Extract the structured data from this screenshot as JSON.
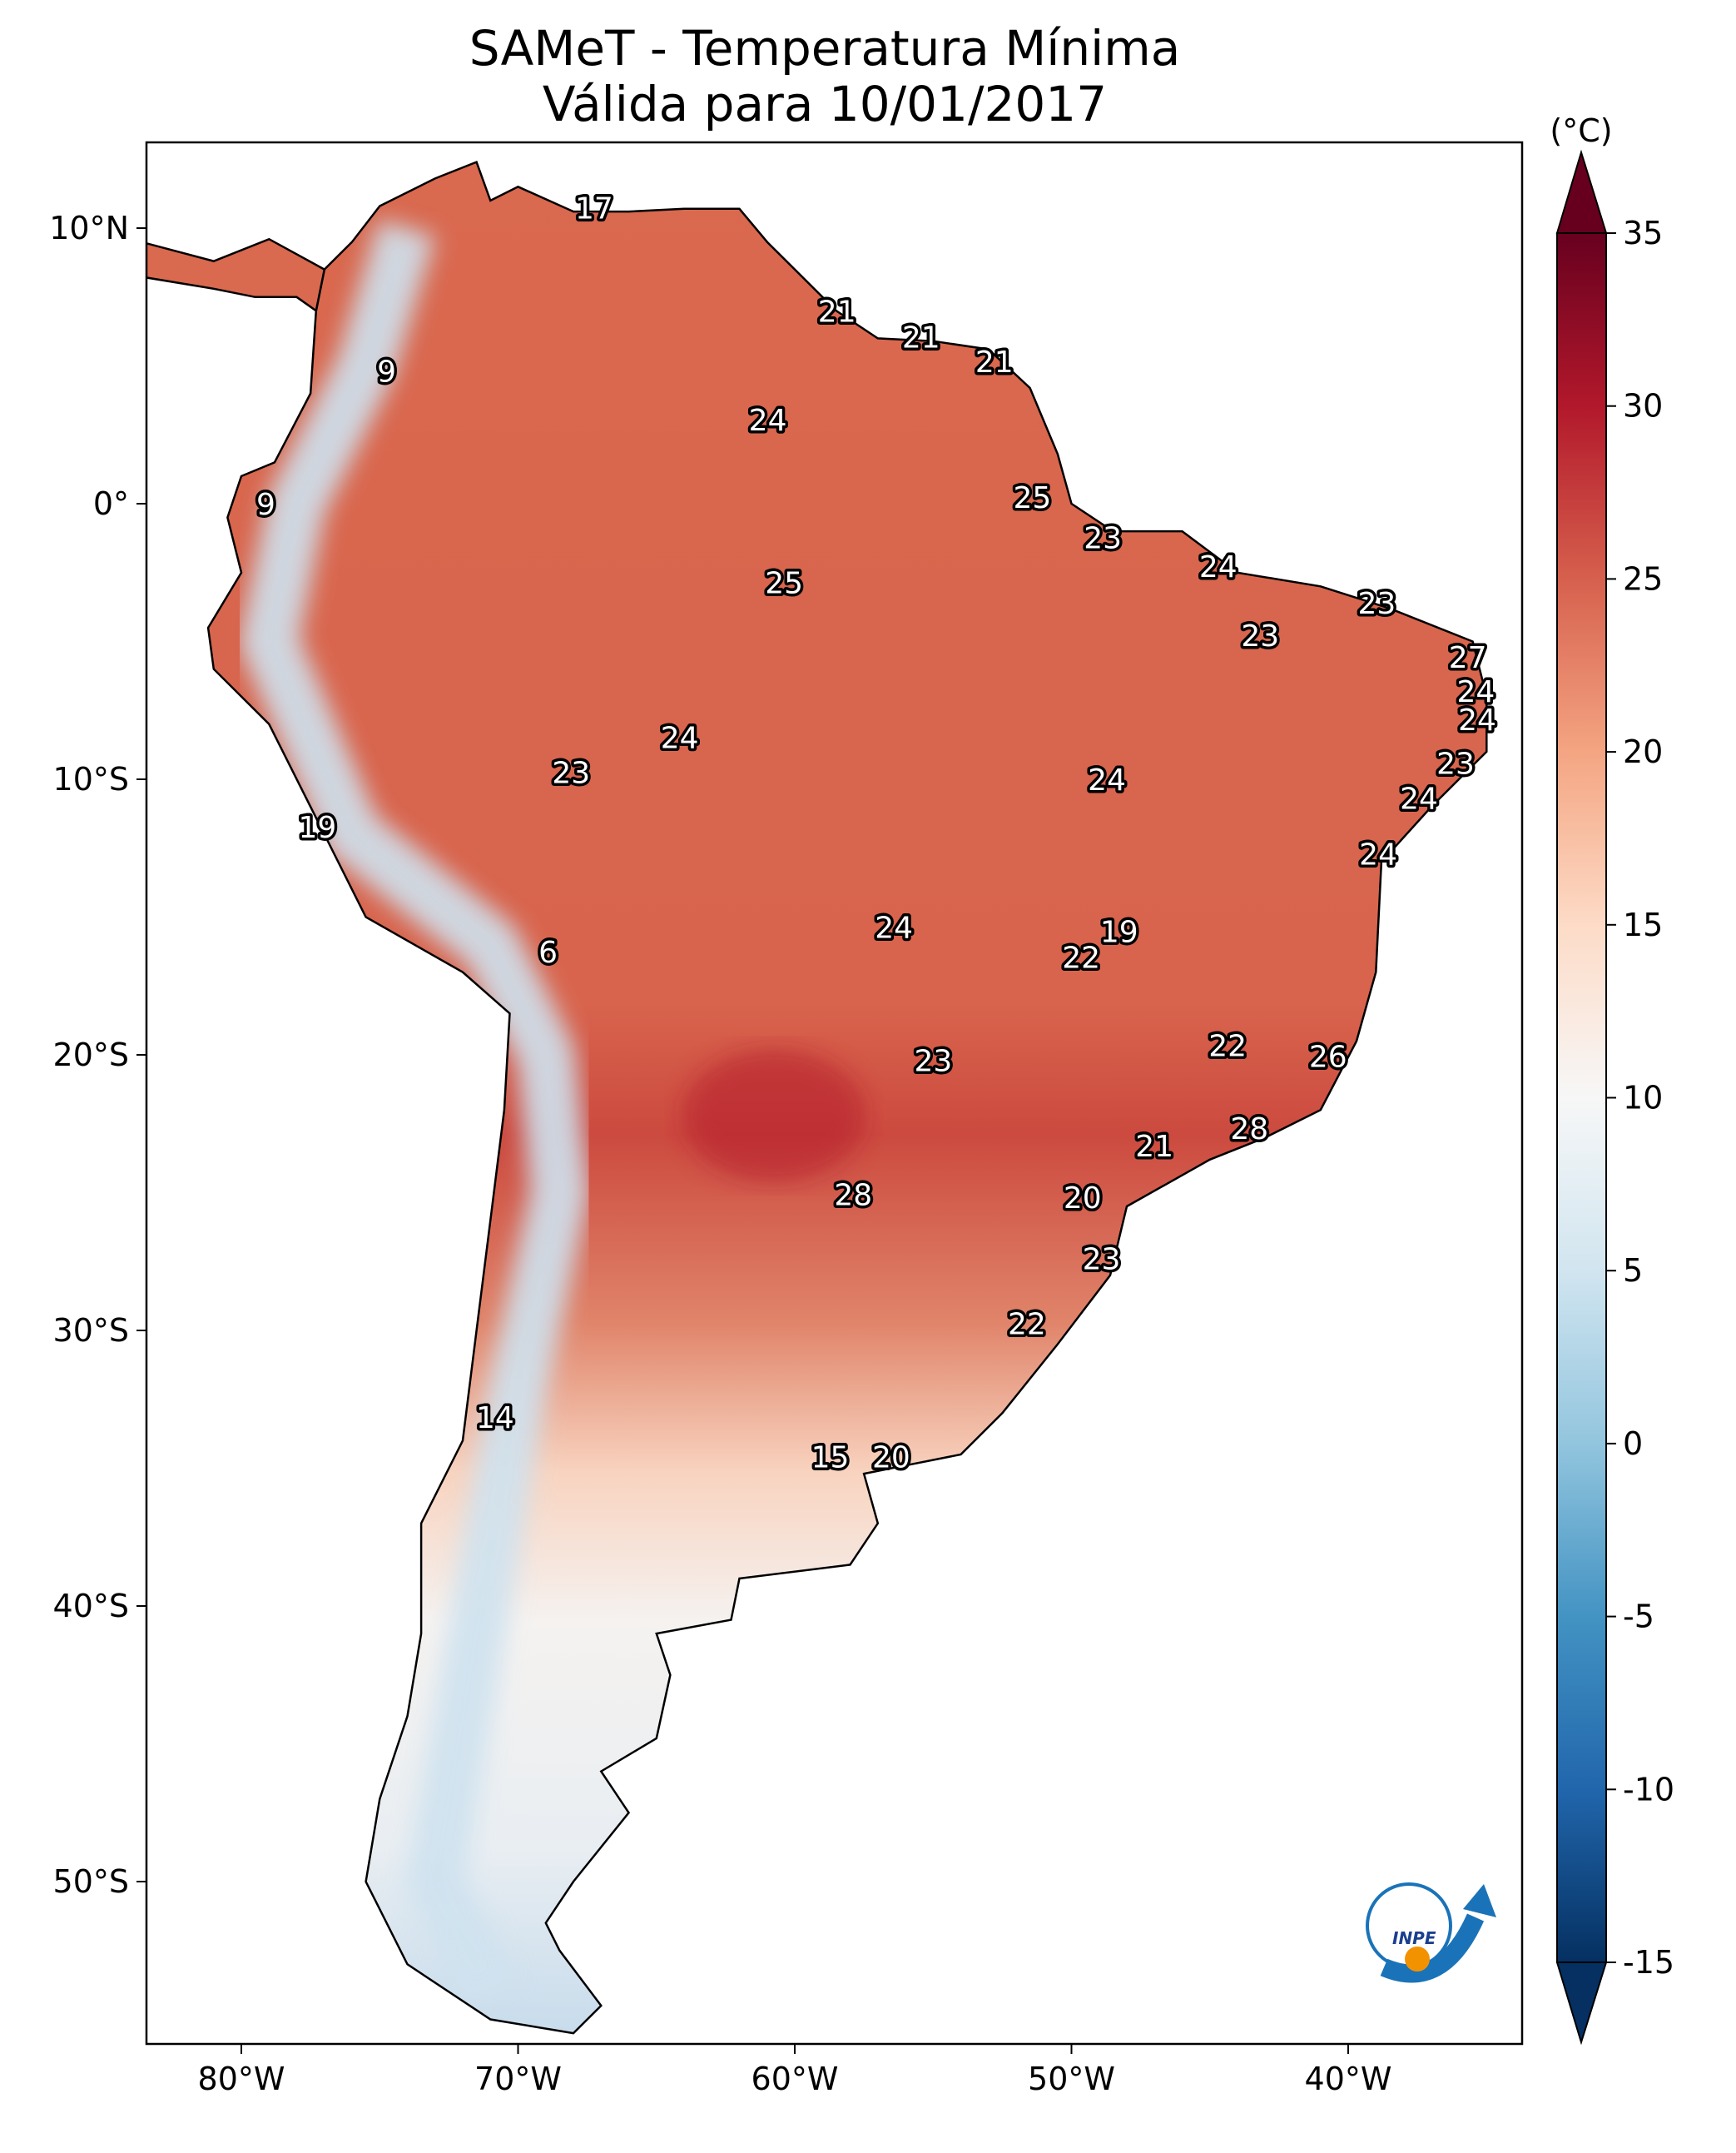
{
  "title": {
    "line1": "SAMeT - Temperatura Mínima",
    "line2": "Válida para 10/01/2017"
  },
  "colorbar": {
    "unit_label": "(°C)",
    "ticks": [
      "35",
      "30",
      "25",
      "20",
      "15",
      "10",
      "5",
      "0",
      "-5",
      "-10",
      "-15"
    ],
    "range": [
      -15,
      35
    ],
    "colors": [
      "#053061",
      "#2166ac",
      "#4393c3",
      "#92c5de",
      "#d1e5f0",
      "#f7f7f7",
      "#fddbc7",
      "#f4a582",
      "#d6604d",
      "#b2182b",
      "#67001f"
    ]
  },
  "axes": {
    "lat_ticks": [
      "10°N",
      "0°",
      "10°S",
      "20°S",
      "30°S",
      "40°S",
      "50°S"
    ],
    "lon_ticks": [
      "80°W",
      "70°W",
      "60°W",
      "50°W",
      "40°W"
    ]
  },
  "stations": [
    {
      "value": "17"
    },
    {
      "value": "21"
    },
    {
      "value": "21"
    },
    {
      "value": "21"
    },
    {
      "value": "9"
    },
    {
      "value": "24"
    },
    {
      "value": "9"
    },
    {
      "value": "25"
    },
    {
      "value": "23"
    },
    {
      "value": "24"
    },
    {
      "value": "25"
    },
    {
      "value": "23"
    },
    {
      "value": "23"
    },
    {
      "value": "27"
    },
    {
      "value": "24"
    },
    {
      "value": "24"
    },
    {
      "value": "24"
    },
    {
      "value": "23"
    },
    {
      "value": "24"
    },
    {
      "value": "23"
    },
    {
      "value": "24"
    },
    {
      "value": "19"
    },
    {
      "value": "24"
    },
    {
      "value": "24"
    },
    {
      "value": "19"
    },
    {
      "value": "6"
    },
    {
      "value": "22"
    },
    {
      "value": "22"
    },
    {
      "value": "23"
    },
    {
      "value": "26"
    },
    {
      "value": "28"
    },
    {
      "value": "21"
    },
    {
      "value": "28"
    },
    {
      "value": "20"
    },
    {
      "value": "23"
    },
    {
      "value": "22"
    },
    {
      "value": "14"
    },
    {
      "value": "15"
    },
    {
      "value": "20"
    }
  ],
  "logo": {
    "text": "INPE",
    "icon": "inpe-logo"
  }
}
